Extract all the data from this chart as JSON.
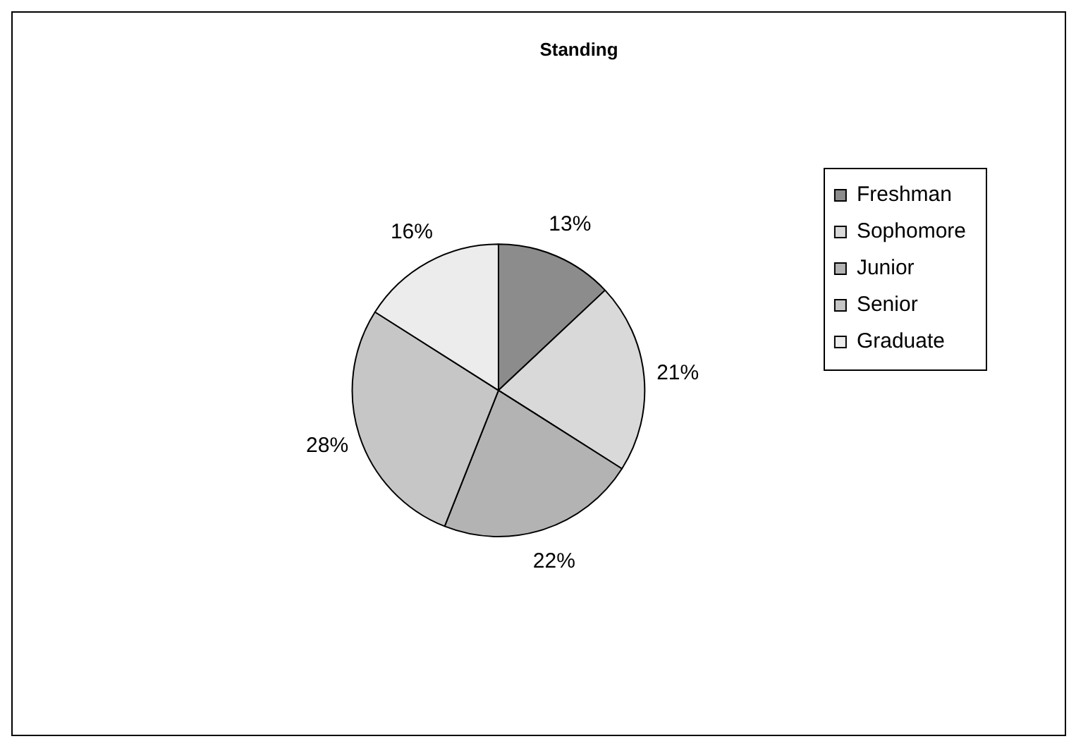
{
  "chart_data": {
    "type": "pie",
    "title": "Standing",
    "categories": [
      "Freshman",
      "Sophomore",
      "Junior",
      "Senior",
      "Graduate"
    ],
    "values": [
      13,
      21,
      22,
      28,
      16
    ],
    "value_labels": [
      "13%",
      "21%",
      "22%",
      "28%",
      "16%"
    ],
    "colors": [
      "#8c8c8c",
      "#d9d9d9",
      "#b3b3b3",
      "#c6c6c6",
      "#ececec"
    ],
    "legend": "right"
  }
}
